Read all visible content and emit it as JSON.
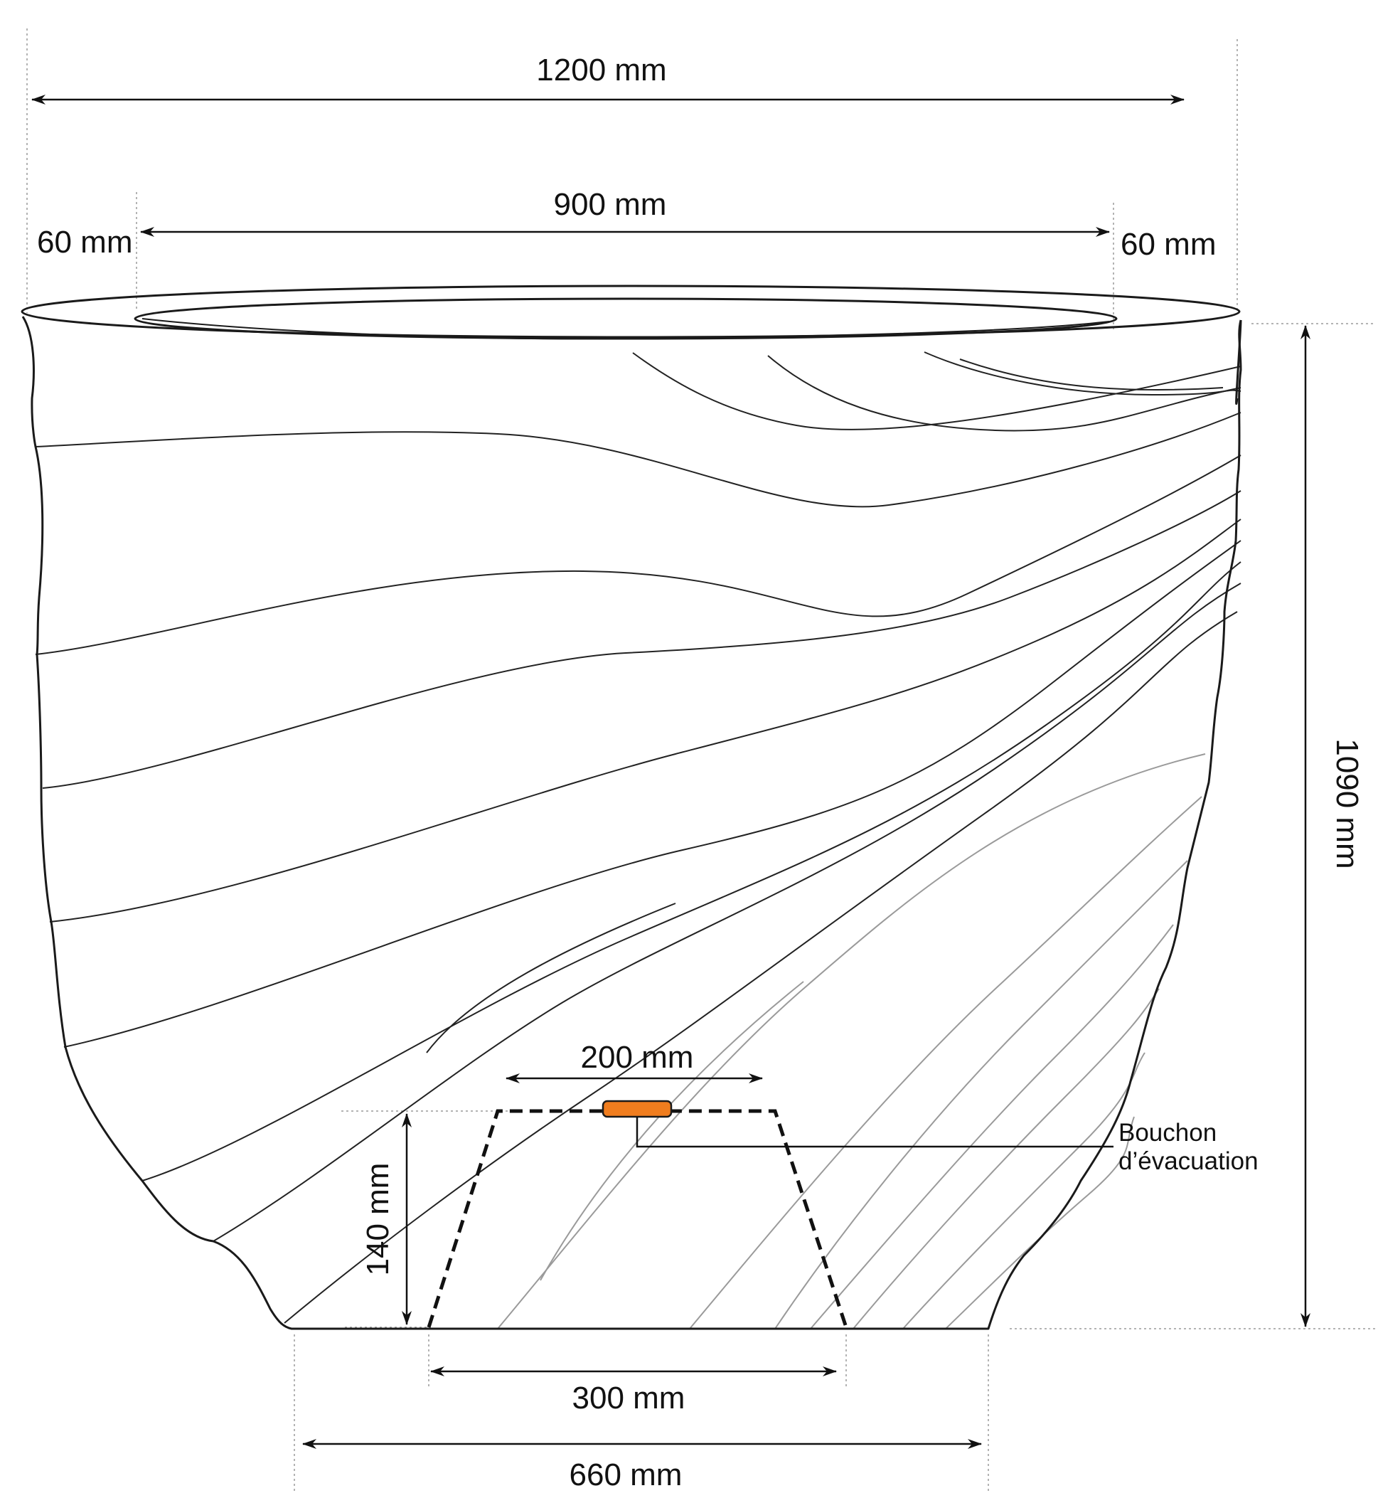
{
  "dimensions": {
    "overall_width": "1200 mm",
    "inner_opening": "900 mm",
    "rim_left": "60 mm",
    "rim_right": "60 mm",
    "height": "1090 mm",
    "plug_width": "200 mm",
    "base_height": "140 mm",
    "inner_base_width": "300 mm",
    "base_width": "660 mm"
  },
  "drain_label": {
    "line1": "Bouchon",
    "line2": "d’évacuation"
  },
  "colors": {
    "plug": "#f07d1e",
    "stroke": "#1a1a1a"
  }
}
